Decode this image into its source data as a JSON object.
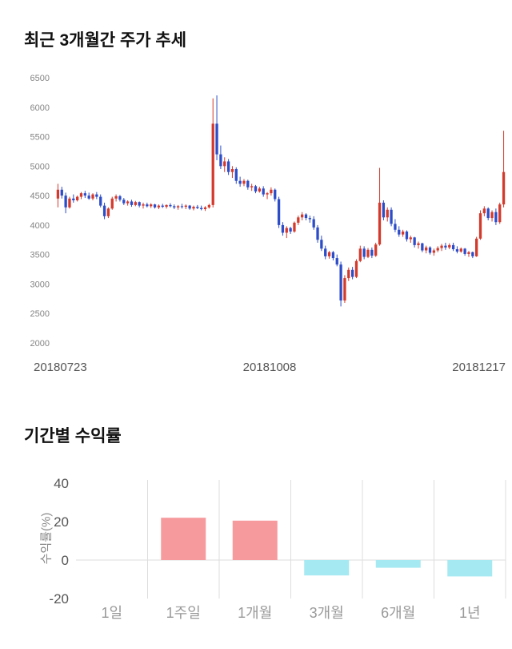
{
  "chart_data": [
    {
      "type": "candlestick",
      "title": "최근 3개월간 주가 추세",
      "ylim": [
        2000,
        6500
      ],
      "y_ticks": [
        2000,
        2500,
        3000,
        3500,
        4000,
        4500,
        5000,
        5500,
        6000,
        6500
      ],
      "x_labels": [
        "20180723",
        "20181008",
        "20181217"
      ],
      "up_color": "#d33a2c",
      "down_color": "#2d4dc8",
      "candles": [
        [
          4450,
          4700,
          4300,
          4600
        ],
        [
          4600,
          4650,
          4450,
          4500
        ],
        [
          4500,
          4550,
          4200,
          4300
        ],
        [
          4300,
          4480,
          4280,
          4450
        ],
        [
          4450,
          4520,
          4380,
          4420
        ],
        [
          4420,
          4500,
          4400,
          4480
        ],
        [
          4480,
          4560,
          4440,
          4540
        ],
        [
          4540,
          4580,
          4460,
          4500
        ],
        [
          4500,
          4550,
          4430,
          4450
        ],
        [
          4450,
          4540,
          4420,
          4520
        ],
        [
          4520,
          4560,
          4440,
          4480
        ],
        [
          4480,
          4520,
          4300,
          4330
        ],
        [
          4330,
          4380,
          4100,
          4150
        ],
        [
          4150,
          4300,
          4120,
          4280
        ],
        [
          4280,
          4480,
          4260,
          4450
        ],
        [
          4450,
          4520,
          4400,
          4490
        ],
        [
          4490,
          4510,
          4400,
          4430
        ],
        [
          4430,
          4460,
          4340,
          4370
        ],
        [
          4370,
          4420,
          4330,
          4400
        ],
        [
          4400,
          4430,
          4310,
          4340
        ],
        [
          4340,
          4410,
          4320,
          4390
        ],
        [
          4390,
          4400,
          4300,
          4330
        ],
        [
          4330,
          4380,
          4280,
          4350
        ],
        [
          4350,
          4380,
          4300,
          4320
        ],
        [
          4320,
          4370,
          4290,
          4350
        ],
        [
          4350,
          4360,
          4280,
          4300
        ],
        [
          4300,
          4350,
          4270,
          4330
        ],
        [
          4330,
          4360,
          4290,
          4310
        ],
        [
          4310,
          4350,
          4280,
          4340
        ],
        [
          4340,
          4370,
          4300,
          4320
        ],
        [
          4320,
          4350,
          4270,
          4300
        ],
        [
          4300,
          4340,
          4260,
          4320
        ],
        [
          4320,
          4360,
          4280,
          4310
        ],
        [
          4310,
          4350,
          4270,
          4330
        ],
        [
          4330,
          4340,
          4260,
          4280
        ],
        [
          4280,
          4330,
          4250,
          4310
        ],
        [
          4310,
          4340,
          4270,
          4290
        ],
        [
          4290,
          4330,
          4250,
          4270
        ],
        [
          4270,
          4320,
          4240,
          4300
        ],
        [
          4300,
          4360,
          4280,
          4340
        ],
        [
          4340,
          6150,
          4300,
          5720
        ],
        [
          5720,
          6200,
          5100,
          5200
        ],
        [
          5200,
          5350,
          4950,
          5000
        ],
        [
          5000,
          5150,
          4900,
          5080
        ],
        [
          5080,
          5120,
          4850,
          4900
        ],
        [
          4900,
          5000,
          4800,
          4950
        ],
        [
          4950,
          4980,
          4700,
          4750
        ],
        [
          4750,
          4820,
          4650,
          4700
        ],
        [
          4700,
          4780,
          4660,
          4750
        ],
        [
          4750,
          4770,
          4600,
          4640
        ],
        [
          4640,
          4700,
          4580,
          4660
        ],
        [
          4660,
          4680,
          4540,
          4570
        ],
        [
          4570,
          4650,
          4550,
          4620
        ],
        [
          4620,
          4660,
          4480,
          4520
        ],
        [
          4520,
          4560,
          4440,
          4540
        ],
        [
          4540,
          4640,
          4500,
          4600
        ],
        [
          4600,
          4620,
          4400,
          4440
        ],
        [
          4440,
          4480,
          3950,
          4000
        ],
        [
          4000,
          4050,
          3820,
          3870
        ],
        [
          3870,
          3980,
          3780,
          3950
        ],
        [
          3950,
          3970,
          3850,
          3890
        ],
        [
          3890,
          4060,
          3870,
          4040
        ],
        [
          4040,
          4160,
          4000,
          4130
        ],
        [
          4130,
          4220,
          4080,
          4180
        ],
        [
          4180,
          4200,
          4080,
          4120
        ],
        [
          4120,
          4160,
          4040,
          4100
        ],
        [
          4100,
          4150,
          3920,
          3960
        ],
        [
          3960,
          4000,
          3700,
          3750
        ],
        [
          3750,
          3820,
          3560,
          3600
        ],
        [
          3600,
          3650,
          3420,
          3470
        ],
        [
          3470,
          3560,
          3430,
          3540
        ],
        [
          3540,
          3560,
          3400,
          3440
        ],
        [
          3440,
          3500,
          3300,
          3330
        ],
        [
          3330,
          3380,
          2620,
          2720
        ],
        [
          2720,
          3150,
          2680,
          3100
        ],
        [
          3100,
          3280,
          3050,
          3240
        ],
        [
          3240,
          3290,
          3080,
          3120
        ],
        [
          3120,
          3420,
          3100,
          3390
        ],
        [
          3390,
          3650,
          3370,
          3600
        ],
        [
          3600,
          3640,
          3420,
          3460
        ],
        [
          3460,
          3610,
          3440,
          3580
        ],
        [
          3580,
          3620,
          3440,
          3480
        ],
        [
          3480,
          3700,
          3460,
          3670
        ],
        [
          3670,
          4970,
          3650,
          4380
        ],
        [
          4380,
          4420,
          4080,
          4130
        ],
        [
          4130,
          4300,
          4060,
          4260
        ],
        [
          4260,
          4300,
          3980,
          4020
        ],
        [
          4020,
          4100,
          3880,
          3920
        ],
        [
          3920,
          3980,
          3800,
          3840
        ],
        [
          3840,
          3920,
          3800,
          3890
        ],
        [
          3890,
          3910,
          3720,
          3760
        ],
        [
          3760,
          3820,
          3700,
          3790
        ],
        [
          3790,
          3800,
          3620,
          3660
        ],
        [
          3660,
          3720,
          3600,
          3690
        ],
        [
          3690,
          3700,
          3540,
          3570
        ],
        [
          3570,
          3650,
          3520,
          3620
        ],
        [
          3620,
          3640,
          3500,
          3530
        ],
        [
          3530,
          3600,
          3480,
          3570
        ],
        [
          3570,
          3640,
          3540,
          3610
        ],
        [
          3610,
          3680,
          3560,
          3650
        ],
        [
          3650,
          3700,
          3580,
          3620
        ],
        [
          3620,
          3690,
          3590,
          3660
        ],
        [
          3660,
          3700,
          3560,
          3590
        ],
        [
          3590,
          3640,
          3520,
          3550
        ],
        [
          3550,
          3620,
          3530,
          3600
        ],
        [
          3600,
          3610,
          3480,
          3510
        ],
        [
          3510,
          3560,
          3460,
          3540
        ],
        [
          3540,
          3550,
          3440,
          3470
        ],
        [
          3470,
          3800,
          3460,
          3770
        ],
        [
          3770,
          4250,
          3750,
          4200
        ],
        [
          4200,
          4320,
          4150,
          4280
        ],
        [
          4280,
          4300,
          4080,
          4120
        ],
        [
          4120,
          4250,
          4060,
          4220
        ],
        [
          4220,
          4280,
          4000,
          4050
        ],
        [
          4050,
          4380,
          4020,
          4350
        ],
        [
          4350,
          5600,
          4300,
          4900
        ]
      ]
    },
    {
      "type": "bar",
      "title": "기간별 수익률",
      "ylabel": "수익률(%)",
      "ylim": [
        -20,
        40
      ],
      "y_ticks": [
        40,
        20,
        0,
        -20
      ],
      "categories": [
        "1일",
        "1주일",
        "1개월",
        "3개월",
        "6개월",
        "1년"
      ],
      "values": [
        0,
        22,
        20.5,
        -8,
        -4,
        -8.5
      ],
      "positive_color": "#f79a9e",
      "negative_color": "#a5e9f2",
      "grid_color": "#dddddd",
      "tick_color": "#555555",
      "category_color": "#999999"
    }
  ]
}
